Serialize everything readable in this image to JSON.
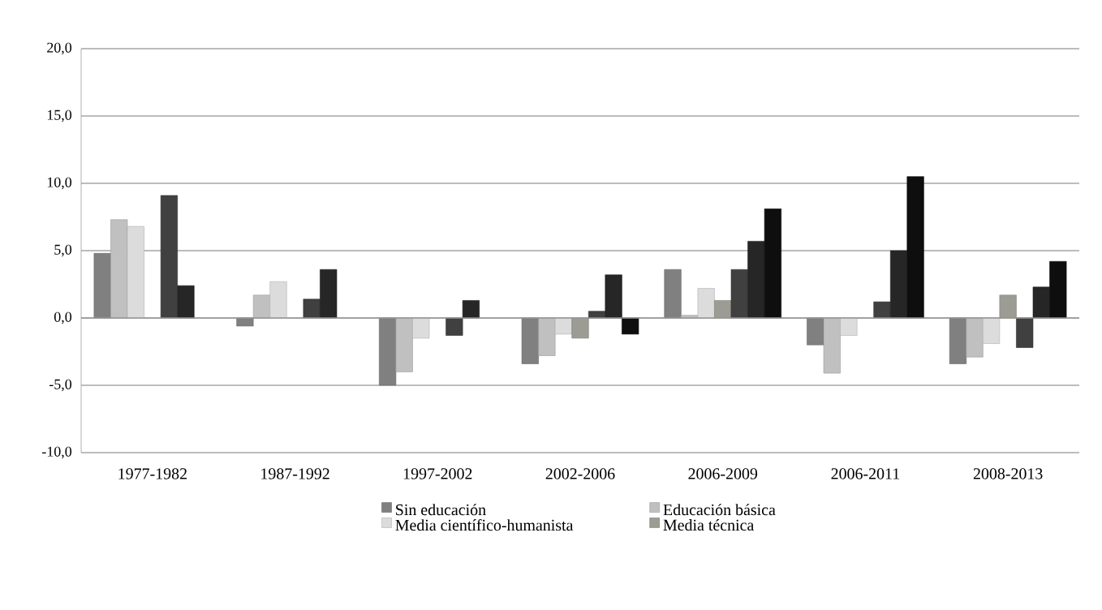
{
  "chart_data": {
    "type": "bar",
    "categories": [
      "1977-1982",
      "1987-1992",
      "1997-2002",
      "2002-2006",
      "2006-2009",
      "2006-2011",
      "2008-2013"
    ],
    "series": [
      {
        "name": "Sin educación",
        "color": "#808080",
        "values": [
          4.8,
          -0.6,
          -5.0,
          -3.4,
          3.6,
          -2.0,
          -3.4
        ]
      },
      {
        "name": "Educación básica",
        "color": "#c0c0c0",
        "values": [
          7.3,
          1.7,
          -4.0,
          -2.8,
          0.2,
          -4.1,
          -2.9
        ]
      },
      {
        "name": "Media científico-humanista",
        "color": "#dcdcdc",
        "values": [
          6.8,
          2.7,
          -1.5,
          -1.2,
          2.2,
          -1.3,
          -1.9
        ]
      },
      {
        "name": "Media técnica",
        "color": "#9c9c94",
        "values": [
          null,
          null,
          null,
          -1.5,
          1.3,
          null,
          1.7
        ]
      },
      {
        "color": "#404040",
        "values": [
          9.1,
          1.4,
          -1.3,
          0.5,
          3.6,
          1.2,
          -2.2
        ]
      },
      {
        "color": "#262626",
        "values": [
          2.4,
          3.6,
          1.3,
          3.2,
          5.7,
          5.0,
          2.3
        ]
      },
      {
        "color": "#0e0e0e",
        "values": [
          null,
          null,
          null,
          -1.2,
          8.1,
          10.5,
          4.2
        ]
      }
    ],
    "ylim": [
      -10,
      20
    ],
    "yticks": [
      {
        "value": -10,
        "label": "-10,0"
      },
      {
        "value": -5,
        "label": "-5,0"
      },
      {
        "value": 0,
        "label": "0,0"
      },
      {
        "value": 5,
        "label": "5,0"
      },
      {
        "value": 10,
        "label": "10,0"
      },
      {
        "value": 15,
        "label": "15,0"
      },
      {
        "value": 20,
        "label": "20,0"
      }
    ],
    "grid": "y",
    "legend": "bottom"
  }
}
